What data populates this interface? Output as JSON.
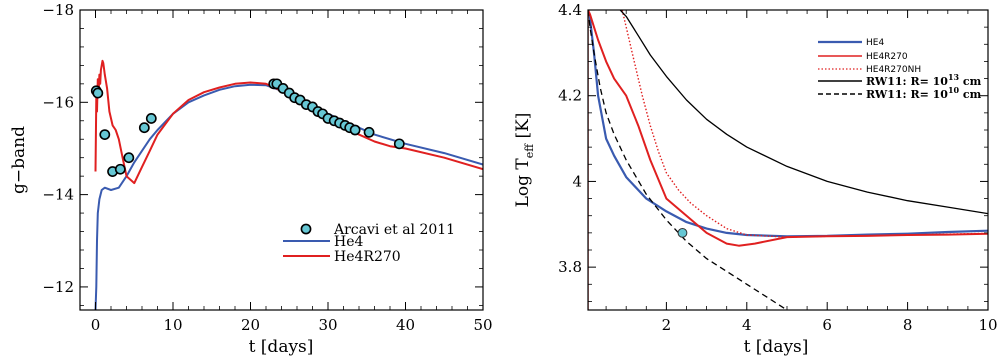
{
  "chart_data": [
    {
      "type": "line",
      "xlabel": "t [days]",
      "ylabel": "g−band",
      "xlim": [
        -2,
        50
      ],
      "ylim": [
        -11.5,
        -18
      ],
      "y_inverted": true,
      "x_ticks": [
        0,
        10,
        20,
        30,
        40,
        50
      ],
      "y_ticks": [
        -12,
        -14,
        -16,
        -18
      ],
      "x_tick_labels": [
        "0",
        "10",
        "20",
        "30",
        "40",
        "50"
      ],
      "y_tick_labels": [
        "−12",
        "−14",
        "−16",
        "−18"
      ],
      "legend_position": "bottom-right",
      "colors": {
        "He4": "#3a5bb0",
        "He4R270": "#e02020",
        "observed": "#66c7d4"
      },
      "series": [
        {
          "name": "Arcavi et al 2011",
          "kind": "scatter",
          "x": [
            0.1,
            0.3,
            1.2,
            2.2,
            3.2,
            4.3,
            6.3,
            7.2,
            23.0,
            23.4,
            24.2,
            25.0,
            25.7,
            26.4,
            27.2,
            28.0,
            28.7,
            29.3,
            30.0,
            30.8,
            31.5,
            32.2,
            32.8,
            33.5,
            35.3,
            39.2
          ],
          "y": [
            -16.25,
            -16.2,
            -15.3,
            -14.5,
            -14.55,
            -14.8,
            -15.45,
            -15.65,
            -16.4,
            -16.4,
            -16.3,
            -16.2,
            -16.1,
            -16.05,
            -15.95,
            -15.9,
            -15.8,
            -15.75,
            -15.65,
            -15.6,
            -15.55,
            -15.5,
            -15.45,
            -15.4,
            -15.35,
            -15.1
          ]
        },
        {
          "name": "He4",
          "x": [
            0.0,
            0.1,
            0.2,
            0.3,
            0.5,
            0.8,
            1.2,
            2.0,
            3.0,
            4.0,
            5.0,
            6.0,
            7.0,
            8.0,
            10.0,
            12.0,
            14.0,
            16.0,
            18.0,
            20.0,
            22.0,
            24.0,
            26.0,
            28.0,
            30.0,
            32.0,
            34.0,
            36.0,
            40.0,
            45.0,
            50.0
          ],
          "y": [
            -11.5,
            -12.0,
            -13.0,
            -13.6,
            -13.9,
            -14.1,
            -14.15,
            -14.1,
            -14.15,
            -14.4,
            -14.7,
            -14.95,
            -15.2,
            -15.4,
            -15.75,
            -16.0,
            -16.15,
            -16.27,
            -16.35,
            -16.38,
            -16.37,
            -16.25,
            -16.12,
            -15.95,
            -15.75,
            -15.6,
            -15.45,
            -15.3,
            -15.1,
            -14.9,
            -14.65
          ]
        },
        {
          "name": "He4R270",
          "x": [
            0.0,
            0.1,
            0.2,
            0.3,
            0.4,
            0.5,
            0.6,
            0.7,
            0.8,
            0.9,
            1.0,
            1.2,
            1.5,
            1.8,
            2.2,
            2.6,
            3.0,
            3.5,
            4.0,
            5.0,
            6.0,
            7.0,
            8.0,
            10.0,
            12.0,
            14.0,
            16.0,
            18.0,
            20.0,
            22.0,
            24.0,
            26.0,
            28.0,
            30.0,
            32.0,
            34.0,
            36.0,
            38.0,
            40.0,
            45.0,
            50.0
          ],
          "y": [
            -14.5,
            -16.1,
            -15.8,
            -16.5,
            -16.2,
            -16.6,
            -16.4,
            -16.7,
            -16.8,
            -16.9,
            -16.85,
            -16.6,
            -16.3,
            -15.8,
            -15.5,
            -15.4,
            -15.2,
            -14.8,
            -14.4,
            -14.25,
            -14.6,
            -14.95,
            -15.3,
            -15.75,
            -16.05,
            -16.22,
            -16.32,
            -16.4,
            -16.43,
            -16.4,
            -16.25,
            -16.05,
            -15.85,
            -15.65,
            -15.45,
            -15.3,
            -15.15,
            -15.05,
            -15.0,
            -14.8,
            -14.55
          ]
        }
      ]
    },
    {
      "type": "line",
      "xlabel": "t [days]",
      "ylabel": "Log T",
      "ylabel_subscript": "eff",
      "ylabel_unit": "[K]",
      "xlim": [
        0.05,
        10
      ],
      "ylim": [
        3.7,
        4.4
      ],
      "x_ticks": [
        2,
        4,
        6,
        8,
        10
      ],
      "y_ticks": [
        3.8,
        4.0,
        4.2,
        4.4
      ],
      "x_tick_labels": [
        "2",
        "4",
        "6",
        "8",
        "10"
      ],
      "y_tick_labels": [
        "3.8",
        "4",
        "4.2",
        "4.4"
      ],
      "legend_position": "top-right",
      "colors": {
        "HE4": "#3a5bb0",
        "HE4R270": "#e02020",
        "HE4R270NH": "#e02020",
        "RW11": "#000000",
        "observed": "#66c7d4"
      },
      "legend": [
        {
          "label": "HE4",
          "style": "solid",
          "color": "#3a5bb0"
        },
        {
          "label": "HE4R270",
          "style": "solid",
          "color": "#e02020"
        },
        {
          "label": "HE4R270NH",
          "style": "dotted",
          "color": "#e02020"
        },
        {
          "label_main": "RW11: R= 10",
          "exponent": "13",
          "label_unit": " cm",
          "style": "solid",
          "color": "#000000"
        },
        {
          "label_main": "RW11: R= 10",
          "exponent": "10",
          "label_unit": " cm",
          "style": "dashed",
          "color": "#000000"
        }
      ],
      "series": [
        {
          "name": "observed",
          "kind": "scatter",
          "x": [
            2.4
          ],
          "y": [
            3.88
          ]
        },
        {
          "name": "HE4",
          "x": [
            0.05,
            0.1,
            0.2,
            0.3,
            0.5,
            0.7,
            1.0,
            1.5,
            2.0,
            2.5,
            3.0,
            3.5,
            4.0,
            5.0,
            6.0,
            7.0,
            8.0,
            9.0,
            10.0
          ],
          "y": [
            4.4,
            4.38,
            4.3,
            4.2,
            4.1,
            4.06,
            4.01,
            3.96,
            3.93,
            3.905,
            3.89,
            3.88,
            3.875,
            3.872,
            3.873,
            3.876,
            3.878,
            3.882,
            3.885
          ]
        },
        {
          "name": "HE4R270",
          "x": [
            0.05,
            0.1,
            0.2,
            0.3,
            0.5,
            0.7,
            1.0,
            1.3,
            1.6,
            2.0,
            2.5,
            3.0,
            3.5,
            3.8,
            4.2,
            5.0,
            6.0,
            7.0,
            8.0,
            9.0,
            10.0
          ],
          "y": [
            4.4,
            4.39,
            4.36,
            4.33,
            4.28,
            4.24,
            4.2,
            4.13,
            4.05,
            3.96,
            3.92,
            3.88,
            3.855,
            3.85,
            3.855,
            3.87,
            3.872,
            3.873,
            3.875,
            3.876,
            3.878
          ]
        },
        {
          "name": "HE4R270NH",
          "x": [
            0.9,
            1.0,
            1.2,
            1.4,
            1.6,
            1.8,
            2.0,
            2.3,
            2.6,
            3.0,
            3.5,
            4.0,
            5.0,
            6.0,
            8.0,
            10.0
          ],
          "y": [
            4.4,
            4.36,
            4.28,
            4.2,
            4.13,
            4.07,
            4.02,
            3.98,
            3.95,
            3.92,
            3.89,
            3.875,
            3.87,
            3.872,
            3.875,
            3.879
          ]
        },
        {
          "name": "RW11: R= 10^13 cm",
          "x": [
            0.85,
            1.0,
            1.3,
            1.6,
            2.0,
            2.5,
            3.0,
            3.5,
            4.0,
            5.0,
            6.0,
            7.0,
            8.0,
            9.0,
            10.0
          ],
          "y": [
            4.4,
            4.385,
            4.34,
            4.295,
            4.245,
            4.19,
            4.145,
            4.11,
            4.08,
            4.035,
            4.0,
            3.975,
            3.955,
            3.94,
            3.925
          ]
        },
        {
          "name": "RW11: R= 10^10 cm",
          "x": [
            0.05,
            0.1,
            0.2,
            0.35,
            0.5,
            0.7,
            1.0,
            1.5,
            2.0,
            2.5,
            3.0,
            3.5,
            4.0,
            4.5,
            5.0
          ],
          "y": [
            4.4,
            4.36,
            4.3,
            4.22,
            4.16,
            4.11,
            4.05,
            3.97,
            3.91,
            3.86,
            3.82,
            3.79,
            3.76,
            3.73,
            3.7
          ]
        }
      ]
    }
  ]
}
